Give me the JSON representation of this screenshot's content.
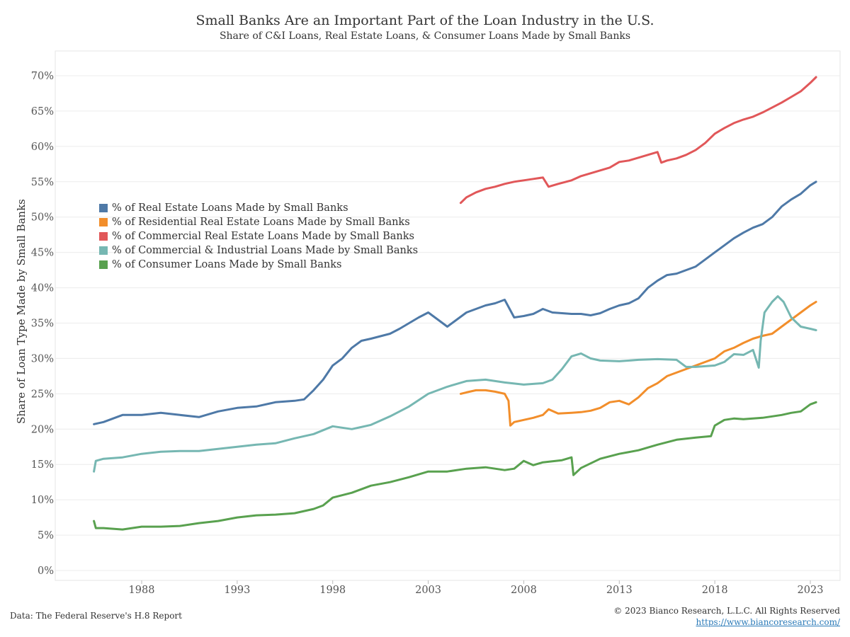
{
  "header": {
    "title": "Small Banks Are an Important Part of the Loan Industry in the U.S.",
    "subtitle": "Share of C&I Loans, Real Estate Loans, & Consumer Loans Made by Small Banks"
  },
  "footer": {
    "source": "Data: The Federal Reserve's H.8 Report",
    "copyright": "© 2023 Bianco Research, L.L.C. All Rights Reserved",
    "url": "https://www.biancoresearch.com/"
  },
  "chart_data": {
    "type": "line",
    "title": "Small Banks Are an Important Part of the Loan Industry in the U.S.",
    "subtitle": "Share of C&I Loans, Real Estate Loans, & Consumer Loans Made by Small Banks",
    "xlabel": "",
    "ylabel": "Share of Loan Type Made by Small Banks",
    "xlim": [
      1985.3,
      2024.8
    ],
    "ylim": [
      0,
      72
    ],
    "x_ticks": [
      1988,
      1993,
      1998,
      2003,
      2008,
      2013,
      2018,
      2023
    ],
    "y_ticks": [
      0,
      5,
      10,
      15,
      20,
      25,
      30,
      35,
      40,
      45,
      50,
      55,
      60,
      65,
      70
    ],
    "y_tick_format": "percent",
    "grid": "horizontal",
    "legend_position": "left-middle",
    "series": [
      {
        "name": "% of Real Estate Loans Made by Small Banks",
        "color": "#4e79a7",
        "x": [
          1985.5,
          1986.0,
          1987.0,
          1988.0,
          1989.0,
          1990.0,
          1991.0,
          1992.0,
          1993.0,
          1994.0,
          1995.0,
          1996.0,
          1996.5,
          1997.0,
          1997.5,
          1998.0,
          1998.5,
          1999.0,
          1999.5,
          2000.0,
          2001.0,
          2001.5,
          2002.0,
          2002.5,
          2003.0,
          2003.5,
          2004.0,
          2004.5,
          2005.0,
          2005.5,
          2006.0,
          2006.5,
          2007.0,
          2007.5,
          2008.0,
          2008.5,
          2009.0,
          2009.5,
          2010.0,
          2010.5,
          2011.0,
          2011.5,
          2012.0,
          2012.5,
          2013.0,
          2013.5,
          2014.0,
          2014.5,
          2015.0,
          2015.5,
          2016.0,
          2016.5,
          2017.0,
          2017.5,
          2018.0,
          2018.5,
          2019.0,
          2019.5,
          2020.0,
          2020.5,
          2021.0,
          2021.5,
          2022.0,
          2022.5,
          2023.0,
          2023.3
        ],
        "values": [
          20.7,
          21.0,
          22.0,
          22.0,
          22.3,
          22.0,
          21.7,
          22.5,
          23.0,
          23.2,
          23.8,
          24.0,
          24.2,
          25.5,
          27.0,
          29.0,
          30.0,
          31.5,
          32.5,
          32.8,
          33.5,
          34.2,
          35.0,
          35.8,
          36.5,
          35.5,
          34.5,
          35.5,
          36.5,
          37.0,
          37.5,
          37.8,
          38.3,
          35.8,
          36.0,
          36.3,
          37.0,
          36.5,
          36.4,
          36.3,
          36.3,
          36.1,
          36.4,
          37.0,
          37.5,
          37.8,
          38.5,
          40.0,
          41.0,
          41.8,
          42.0,
          42.5,
          43.0,
          44.0,
          45.0,
          46.0,
          47.0,
          47.8,
          48.5,
          49.0,
          50.0,
          51.5,
          52.5,
          53.3,
          54.5,
          55.0
        ]
      },
      {
        "name": "% of Residential Real Estate Loans Made by Small Banks",
        "color": "#f28e2b",
        "x": [
          2004.7,
          2005.0,
          2005.5,
          2006.0,
          2006.5,
          2007.0,
          2007.2,
          2007.3,
          2007.5,
          2008.0,
          2008.5,
          2009.0,
          2009.3,
          2009.8,
          2010.5,
          2011.0,
          2011.5,
          2012.0,
          2012.5,
          2013.0,
          2013.5,
          2014.0,
          2014.5,
          2015.0,
          2015.5,
          2016.0,
          2016.5,
          2017.0,
          2017.5,
          2018.0,
          2018.5,
          2019.0,
          2019.5,
          2020.0,
          2020.5,
          2021.0,
          2021.5,
          2022.0,
          2022.5,
          2023.0,
          2023.3
        ],
        "values": [
          25.0,
          25.2,
          25.5,
          25.5,
          25.3,
          25.0,
          24.0,
          20.5,
          21.0,
          21.3,
          21.6,
          22.0,
          22.8,
          22.2,
          22.3,
          22.4,
          22.6,
          23.0,
          23.8,
          24.0,
          23.5,
          24.5,
          25.8,
          26.5,
          27.5,
          28.0,
          28.5,
          29.0,
          29.5,
          30.0,
          31.0,
          31.5,
          32.2,
          32.8,
          33.2,
          33.5,
          34.5,
          35.5,
          36.5,
          37.5,
          38.0
        ]
      },
      {
        "name": "% of Commercial Real Estate Loans Made by Small Banks",
        "color": "#e15759",
        "x": [
          2004.7,
          2005.0,
          2005.5,
          2006.0,
          2006.5,
          2007.0,
          2007.5,
          2008.0,
          2008.5,
          2009.0,
          2009.3,
          2009.8,
          2010.5,
          2011.0,
          2011.5,
          2012.0,
          2012.5,
          2013.0,
          2013.5,
          2014.0,
          2014.5,
          2015.0,
          2015.2,
          2015.5,
          2016.0,
          2016.5,
          2017.0,
          2017.5,
          2018.0,
          2018.5,
          2019.0,
          2019.5,
          2020.0,
          2020.5,
          2021.0,
          2021.5,
          2022.0,
          2022.5,
          2023.0,
          2023.3
        ],
        "values": [
          52.0,
          52.8,
          53.5,
          54.0,
          54.3,
          54.7,
          55.0,
          55.2,
          55.4,
          55.6,
          54.3,
          54.7,
          55.2,
          55.8,
          56.2,
          56.6,
          57.0,
          57.8,
          58.0,
          58.4,
          58.8,
          59.2,
          57.7,
          58.0,
          58.3,
          58.8,
          59.5,
          60.5,
          61.8,
          62.6,
          63.3,
          63.8,
          64.2,
          64.8,
          65.5,
          66.2,
          67.0,
          67.8,
          69.0,
          69.8
        ]
      },
      {
        "name": "% of Commercial & Industrial Loans Made by Small Banks",
        "color": "#76b7b2",
        "x": [
          1985.5,
          1985.6,
          1986.0,
          1987.0,
          1988.0,
          1989.0,
          1990.0,
          1991.0,
          1992.0,
          1993.0,
          1994.0,
          1995.0,
          1996.0,
          1997.0,
          1998.0,
          1999.0,
          2000.0,
          2001.0,
          2002.0,
          2003.0,
          2004.0,
          2005.0,
          2006.0,
          2007.0,
          2008.0,
          2009.0,
          2009.5,
          2010.0,
          2010.5,
          2011.0,
          2011.5,
          2012.0,
          2013.0,
          2014.0,
          2015.0,
          2016.0,
          2016.5,
          2017.0,
          2018.0,
          2018.5,
          2019.0,
          2019.5,
          2020.0,
          2020.3,
          2020.4,
          2020.6,
          2021.0,
          2021.3,
          2021.6,
          2022.0,
          2022.5,
          2023.0,
          2023.3
        ],
        "values": [
          14.0,
          15.5,
          15.8,
          16.0,
          16.5,
          16.8,
          16.9,
          16.9,
          17.2,
          17.5,
          17.8,
          18.0,
          18.7,
          19.3,
          20.4,
          20.0,
          20.6,
          21.8,
          23.2,
          25.0,
          26.0,
          26.8,
          27.0,
          26.6,
          26.3,
          26.5,
          27.0,
          28.5,
          30.3,
          30.7,
          30.0,
          29.7,
          29.6,
          29.8,
          29.9,
          29.8,
          28.8,
          28.8,
          29.0,
          29.5,
          30.6,
          30.5,
          31.2,
          28.7,
          32.5,
          36.5,
          38.0,
          38.8,
          38.0,
          35.8,
          34.5,
          34.2,
          34.0
        ]
      },
      {
        "name": "% of Consumer Loans Made by Small Banks",
        "color": "#59a14f",
        "x": [
          1985.5,
          1985.6,
          1986.0,
          1987.0,
          1988.0,
          1989.0,
          1990.0,
          1991.0,
          1992.0,
          1993.0,
          1994.0,
          1995.0,
          1996.0,
          1997.0,
          1997.5,
          1998.0,
          1999.0,
          2000.0,
          2001.0,
          2002.0,
          2003.0,
          2004.0,
          2005.0,
          2006.0,
          2007.0,
          2007.5,
          2008.0,
          2008.5,
          2009.0,
          2010.0,
          2010.5,
          2010.6,
          2011.0,
          2012.0,
          2013.0,
          2014.0,
          2015.0,
          2016.0,
          2017.0,
          2017.8,
          2018.0,
          2018.5,
          2019.0,
          2019.5,
          2020.0,
          2020.5,
          2021.0,
          2021.5,
          2022.0,
          2022.5,
          2023.0,
          2023.3
        ],
        "values": [
          7.0,
          6.0,
          6.0,
          5.8,
          6.2,
          6.2,
          6.3,
          6.7,
          7.0,
          7.5,
          7.8,
          7.9,
          8.1,
          8.7,
          9.2,
          10.3,
          11.0,
          12.0,
          12.5,
          13.2,
          14.0,
          14.0,
          14.4,
          14.6,
          14.2,
          14.4,
          15.5,
          14.9,
          15.3,
          15.6,
          16.0,
          13.5,
          14.5,
          15.8,
          16.5,
          17.0,
          17.8,
          18.5,
          18.8,
          19.0,
          20.5,
          21.3,
          21.5,
          21.4,
          21.5,
          21.6,
          21.8,
          22.0,
          22.3,
          22.5,
          23.5,
          23.8
        ]
      }
    ]
  }
}
